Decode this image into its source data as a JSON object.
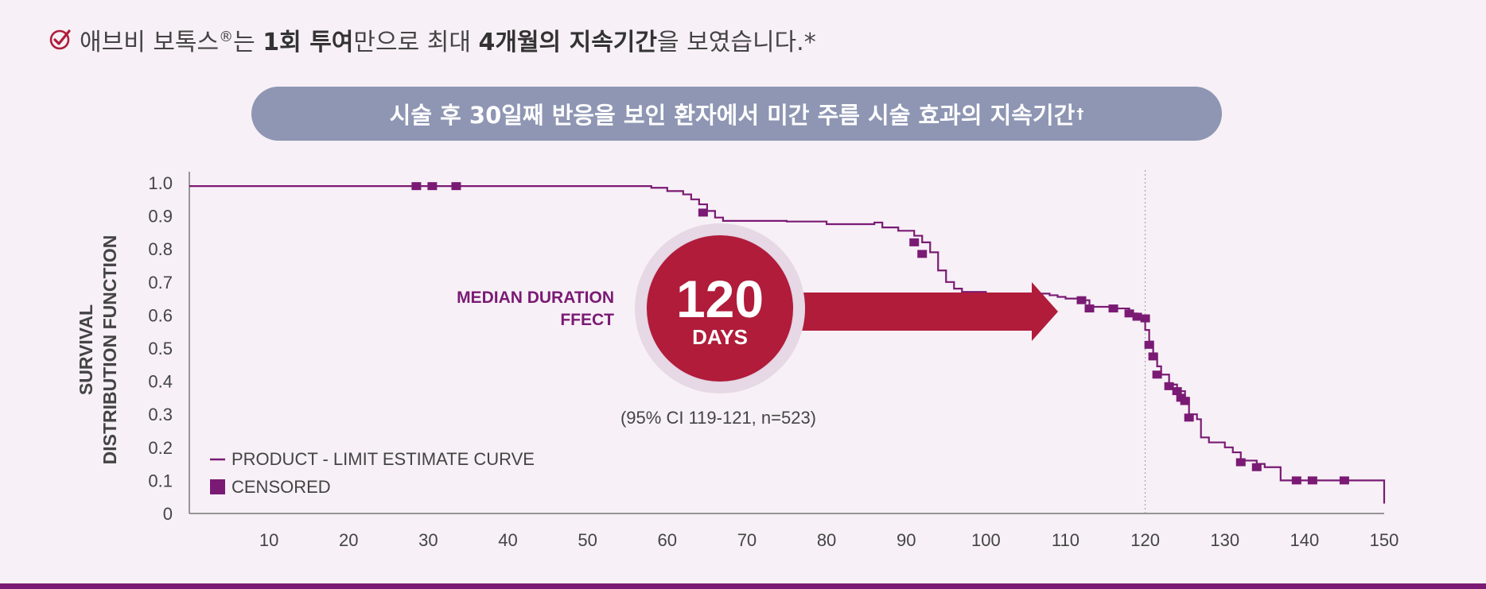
{
  "headline": {
    "parts": [
      "애브비 보톡스",
      "®",
      "는 ",
      "1회 투여",
      "만으로 최대 ",
      "4개월의 지속기간",
      "을 보였습니다.*"
    ]
  },
  "pill": {
    "text": "시술 후 30일째 반응을 보인 환자에서 미간 주름 시술 효과의 지속기간",
    "mark": "†"
  },
  "colors": {
    "curve": "#7a1a74",
    "accent": "#b01c3a",
    "pill": "#8e96b3",
    "background": "#f7f0f6"
  },
  "icons": {
    "check": "check-circle-icon"
  },
  "chart_data": {
    "type": "line",
    "step": true,
    "ylabel_lines": [
      "SURVIVAL",
      "DISTRIBUTION FUNCTION"
    ],
    "xlabel": "",
    "xlim": [
      0,
      150
    ],
    "ylim": [
      0,
      1.0
    ],
    "x_ticks": [
      10,
      20,
      30,
      40,
      50,
      60,
      70,
      80,
      90,
      100,
      110,
      120,
      130,
      140,
      150
    ],
    "y_ticks": [
      {
        "value": 0,
        "label": "0"
      },
      {
        "value": 0.1,
        "label": "0.1"
      },
      {
        "value": 0.2,
        "label": "0.2"
      },
      {
        "value": 0.3,
        "label": "0.3"
      },
      {
        "value": 0.4,
        "label": "0.4"
      },
      {
        "value": 0.5,
        "label": "0.5"
      },
      {
        "value": 0.6,
        "label": "0.6"
      },
      {
        "value": 0.7,
        "label": "0.7"
      },
      {
        "value": 0.8,
        "label": "0.8"
      },
      {
        "value": 0.9,
        "label": "0.9"
      },
      {
        "value": 1.0,
        "label": "1.0"
      }
    ],
    "series": [
      {
        "name": "PRODUCT - LIMIT ESTIMATE CURVE",
        "points": [
          [
            0,
            0.99
          ],
          [
            57,
            0.99
          ],
          [
            58,
            0.985
          ],
          [
            60,
            0.975
          ],
          [
            62,
            0.965
          ],
          [
            63,
            0.95
          ],
          [
            64,
            0.935
          ],
          [
            65,
            0.915
          ],
          [
            66,
            0.895
          ],
          [
            67,
            0.885
          ],
          [
            75,
            0.883
          ],
          [
            80,
            0.875
          ],
          [
            86,
            0.88
          ],
          [
            87,
            0.865
          ],
          [
            89,
            0.855
          ],
          [
            91,
            0.84
          ],
          [
            92,
            0.82
          ],
          [
            93,
            0.79
          ],
          [
            94,
            0.735
          ],
          [
            95,
            0.7
          ],
          [
            96,
            0.68
          ],
          [
            97,
            0.67
          ],
          [
            100,
            0.665
          ],
          [
            108,
            0.66
          ],
          [
            109,
            0.655
          ],
          [
            110,
            0.65
          ],
          [
            112,
            0.645
          ],
          [
            113,
            0.625
          ],
          [
            116,
            0.62
          ],
          [
            118,
            0.605
          ],
          [
            119,
            0.595
          ],
          [
            120,
            0.555
          ],
          [
            120.5,
            0.52
          ],
          [
            121,
            0.48
          ],
          [
            121.5,
            0.445
          ],
          [
            122,
            0.42
          ],
          [
            123,
            0.39
          ],
          [
            124,
            0.37
          ],
          [
            125,
            0.35
          ],
          [
            125.5,
            0.3
          ],
          [
            126.5,
            0.285
          ],
          [
            127,
            0.23
          ],
          [
            128,
            0.215
          ],
          [
            130,
            0.2
          ],
          [
            131,
            0.185
          ],
          [
            132,
            0.16
          ],
          [
            134,
            0.15
          ],
          [
            135,
            0.14
          ],
          [
            137,
            0.1
          ],
          [
            141,
            0.1
          ],
          [
            150,
            0.1
          ],
          [
            150,
            0.03
          ]
        ]
      }
    ],
    "censored": [
      [
        28.5,
        0.99
      ],
      [
        30.5,
        0.99
      ],
      [
        33.5,
        0.99
      ],
      [
        64.5,
        0.91
      ],
      [
        91,
        0.82
      ],
      [
        92,
        0.785
      ],
      [
        112,
        0.645
      ],
      [
        113,
        0.62
      ],
      [
        116,
        0.62
      ],
      [
        118,
        0.605
      ],
      [
        119,
        0.595
      ],
      [
        120,
        0.59
      ],
      [
        120.5,
        0.51
      ],
      [
        121,
        0.475
      ],
      [
        121.5,
        0.42
      ],
      [
        123,
        0.385
      ],
      [
        124,
        0.37
      ],
      [
        124.5,
        0.35
      ],
      [
        125,
        0.34
      ],
      [
        125.5,
        0.29
      ],
      [
        132,
        0.155
      ],
      [
        134,
        0.14
      ],
      [
        139,
        0.1
      ],
      [
        141,
        0.1
      ],
      [
        145,
        0.1
      ]
    ],
    "reference_line_x": 120,
    "legend": {
      "placement": "bottom-left",
      "line_label": "PRODUCT - LIMIT ESTIMATE CURVE",
      "marker_label": "CENSORED"
    },
    "annotations": {
      "median_label_lines": [
        "MEDIAN DURATION",
        "FFECT"
      ],
      "median_value": "120",
      "median_unit": "DAYS",
      "median_x": 120,
      "ci_text": "(95% CI 119-121, n=523)"
    }
  }
}
